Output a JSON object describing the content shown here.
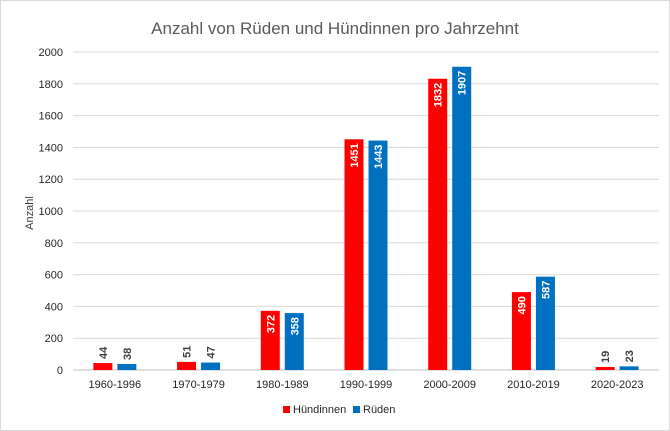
{
  "chart_data": {
    "type": "bar",
    "title": "Anzahl von Rüden und Hündinnen pro Jahrzehnt",
    "xlabel": "",
    "ylabel": "Anzahl",
    "ylim": [
      0,
      2000
    ],
    "yticks": [
      0,
      200,
      400,
      600,
      800,
      1000,
      1200,
      1400,
      1600,
      1800,
      2000
    ],
    "grid": true,
    "legend_position": "bottom",
    "categories": [
      "1960-1996",
      "1970-1979",
      "1980-1989",
      "1990-1999",
      "2000-2009",
      "2010-2019",
      "2020-2023"
    ],
    "series": [
      {
        "name": "Hündinnen",
        "color": "#ff0000",
        "values": [
          44,
          51,
          372,
          1451,
          1832,
          490,
          19
        ]
      },
      {
        "name": "Rüden",
        "color": "#0070c0",
        "values": [
          38,
          47,
          358,
          1443,
          1907,
          587,
          23
        ]
      }
    ]
  }
}
